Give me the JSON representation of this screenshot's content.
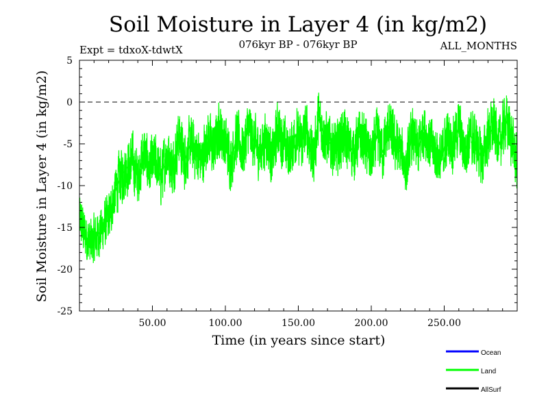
{
  "chart_data": {
    "type": "line",
    "title": "Soil Moisture in Layer 4 (in kg/m2)",
    "subtitle_left": "Expt = tdxoX-tdwtX",
    "subtitle_center": "076kyr BP - 076kyr BP",
    "subtitle_right": "ALL_MONTHS",
    "xlabel": "Time (in years since start)",
    "ylabel": "Soil Moisture in Layer 4 (in kg/m2)",
    "xlim": [
      0,
      300
    ],
    "ylim": [
      -25,
      5
    ],
    "xticks": [
      50,
      100,
      150,
      200,
      250
    ],
    "xtick_labels": [
      "50.00",
      "100.00",
      "150.00",
      "200.00",
      "250.00"
    ],
    "yticks": [
      5,
      0,
      -5,
      -10,
      -15,
      -20,
      -25
    ],
    "ytick_labels": [
      "5",
      "0",
      "-5",
      "-10",
      "-15",
      "-20",
      "-25"
    ],
    "reference_line": {
      "y": 0,
      "style": "dashed"
    },
    "legend": [
      {
        "name": "Ocean",
        "color": "#0000ff"
      },
      {
        "name": "Land",
        "color": "#00ff00"
      },
      {
        "name": "AllSurf",
        "color": "#000000"
      }
    ],
    "series": [
      {
        "name": "Land",
        "color": "#00ff00",
        "x": [
          0,
          4,
          8,
          12,
          16,
          20,
          24,
          28,
          32,
          36,
          40,
          44,
          48,
          52,
          56,
          60,
          64,
          68,
          72,
          76,
          80,
          84,
          88,
          92,
          96,
          100,
          104,
          108,
          112,
          116,
          120,
          124,
          128,
          132,
          136,
          140,
          144,
          148,
          152,
          156,
          160,
          164,
          168,
          172,
          176,
          180,
          184,
          188,
          192,
          196,
          200,
          204,
          208,
          212,
          216,
          220,
          224,
          228,
          232,
          236,
          240,
          244,
          248,
          252,
          256,
          260,
          264,
          268,
          272,
          276,
          280,
          284,
          288,
          292,
          296,
          300
        ],
        "y": [
          -14,
          -16,
          -17,
          -16,
          -15,
          -14,
          -11,
          -9,
          -8,
          -7,
          -9,
          -6,
          -8,
          -7,
          -9,
          -6,
          -8,
          -4,
          -7,
          -5,
          -6,
          -7,
          -4,
          -6,
          -3,
          -5,
          -7,
          -4,
          -6,
          -3,
          -5,
          -6,
          -4,
          -7,
          -3,
          -5,
          -6,
          -4,
          -5,
          -3,
          -7,
          -2,
          -4,
          -5,
          -6,
          -4,
          -5,
          -6,
          -4,
          -5,
          -7,
          -4,
          -6,
          -3,
          -5,
          -6,
          -8,
          -4,
          -6,
          -3,
          -5,
          -6,
          -7,
          -4,
          -5,
          -3,
          -6,
          -4,
          -5,
          -7,
          -4,
          -3,
          -5,
          -2,
          -4,
          -8
        ],
        "x_range": [
          0,
          300
        ],
        "y_range": [
          -22.5,
          4.5
        ]
      }
    ]
  }
}
